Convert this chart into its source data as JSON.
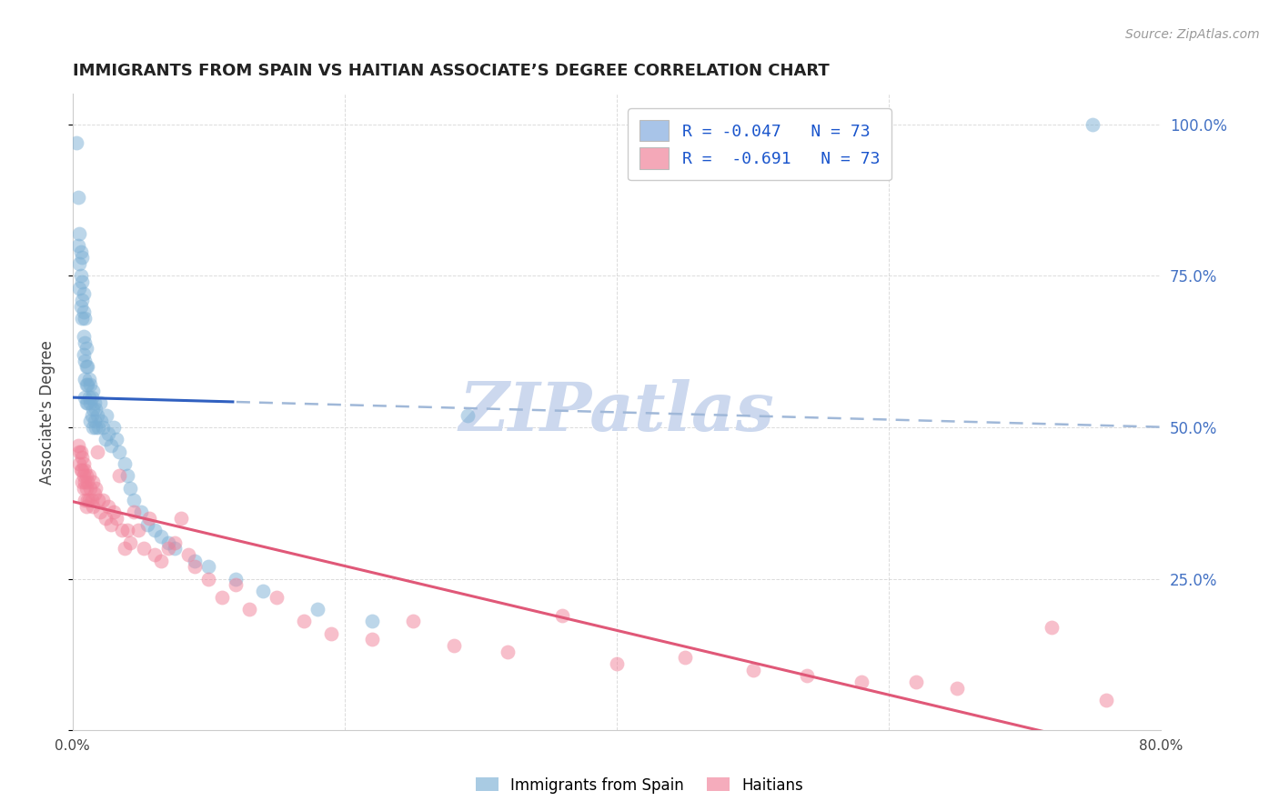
{
  "title": "IMMIGRANTS FROM SPAIN VS HAITIAN ASSOCIATE’S DEGREE CORRELATION CHART",
  "source": "Source: ZipAtlas.com",
  "ylabel": "Associate's Degree",
  "right_yticks": [
    "100.0%",
    "75.0%",
    "50.0%",
    "25.0%"
  ],
  "right_ytick_vals": [
    1.0,
    0.75,
    0.5,
    0.25
  ],
  "legend_label1": "R = -0.047   N = 73",
  "legend_label2": "R =  -0.691   N = 73",
  "legend_color1": "#a8c4e8",
  "legend_color2": "#f4a8b8",
  "scatter_color1": "#7bafd4",
  "scatter_color2": "#f08098",
  "line_color1_solid": "#3060c0",
  "line_color1_dash": "#a0b8d8",
  "line_color2": "#e05878",
  "watermark": "ZIPatlas",
  "background_color": "#ffffff",
  "xmin": 0.0,
  "xmax": 0.8,
  "ymin": 0.0,
  "ymax": 1.05,
  "grid_color": "#cccccc",
  "watermark_color": "#ccd8ee",
  "ytick_positions": [
    0.0,
    0.25,
    0.5,
    0.75,
    1.0
  ],
  "spain_x": [
    0.003,
    0.004,
    0.004,
    0.005,
    0.005,
    0.005,
    0.006,
    0.006,
    0.006,
    0.007,
    0.007,
    0.007,
    0.007,
    0.008,
    0.008,
    0.008,
    0.008,
    0.009,
    0.009,
    0.009,
    0.009,
    0.009,
    0.01,
    0.01,
    0.01,
    0.01,
    0.011,
    0.011,
    0.011,
    0.012,
    0.012,
    0.013,
    0.013,
    0.013,
    0.014,
    0.014,
    0.015,
    0.015,
    0.015,
    0.016,
    0.016,
    0.017,
    0.017,
    0.018,
    0.019,
    0.02,
    0.021,
    0.022,
    0.024,
    0.025,
    0.026,
    0.028,
    0.03,
    0.032,
    0.034,
    0.038,
    0.04,
    0.042,
    0.045,
    0.05,
    0.055,
    0.06,
    0.065,
    0.07,
    0.075,
    0.09,
    0.1,
    0.12,
    0.14,
    0.18,
    0.22,
    0.29,
    0.75
  ],
  "spain_y": [
    0.97,
    0.88,
    0.8,
    0.82,
    0.77,
    0.73,
    0.79,
    0.75,
    0.7,
    0.78,
    0.74,
    0.71,
    0.68,
    0.72,
    0.69,
    0.65,
    0.62,
    0.68,
    0.64,
    0.61,
    0.58,
    0.55,
    0.63,
    0.6,
    0.57,
    0.54,
    0.6,
    0.57,
    0.54,
    0.58,
    0.55,
    0.57,
    0.54,
    0.51,
    0.55,
    0.52,
    0.56,
    0.53,
    0.5,
    0.54,
    0.51,
    0.53,
    0.5,
    0.52,
    0.5,
    0.54,
    0.51,
    0.5,
    0.48,
    0.52,
    0.49,
    0.47,
    0.5,
    0.48,
    0.46,
    0.44,
    0.42,
    0.4,
    0.38,
    0.36,
    0.34,
    0.33,
    0.32,
    0.31,
    0.3,
    0.28,
    0.27,
    0.25,
    0.23,
    0.2,
    0.18,
    0.52,
    1.0
  ],
  "haiti_x": [
    0.004,
    0.005,
    0.005,
    0.006,
    0.006,
    0.007,
    0.007,
    0.007,
    0.008,
    0.008,
    0.008,
    0.009,
    0.009,
    0.009,
    0.01,
    0.01,
    0.01,
    0.011,
    0.011,
    0.012,
    0.012,
    0.013,
    0.014,
    0.015,
    0.015,
    0.016,
    0.017,
    0.018,
    0.019,
    0.02,
    0.022,
    0.024,
    0.026,
    0.028,
    0.03,
    0.032,
    0.034,
    0.036,
    0.038,
    0.04,
    0.042,
    0.045,
    0.048,
    0.052,
    0.056,
    0.06,
    0.065,
    0.07,
    0.075,
    0.08,
    0.085,
    0.09,
    0.1,
    0.11,
    0.12,
    0.13,
    0.15,
    0.17,
    0.19,
    0.22,
    0.25,
    0.28,
    0.32,
    0.36,
    0.4,
    0.45,
    0.5,
    0.54,
    0.58,
    0.62,
    0.65,
    0.72,
    0.76
  ],
  "haiti_y": [
    0.47,
    0.46,
    0.44,
    0.46,
    0.43,
    0.45,
    0.43,
    0.41,
    0.44,
    0.42,
    0.4,
    0.43,
    0.41,
    0.38,
    0.42,
    0.4,
    0.37,
    0.41,
    0.38,
    0.42,
    0.38,
    0.4,
    0.38,
    0.41,
    0.37,
    0.39,
    0.4,
    0.46,
    0.38,
    0.36,
    0.38,
    0.35,
    0.37,
    0.34,
    0.36,
    0.35,
    0.42,
    0.33,
    0.3,
    0.33,
    0.31,
    0.36,
    0.33,
    0.3,
    0.35,
    0.29,
    0.28,
    0.3,
    0.31,
    0.35,
    0.29,
    0.27,
    0.25,
    0.22,
    0.24,
    0.2,
    0.22,
    0.18,
    0.16,
    0.15,
    0.18,
    0.14,
    0.13,
    0.19,
    0.11,
    0.12,
    0.1,
    0.09,
    0.08,
    0.08,
    0.07,
    0.17,
    0.05
  ]
}
